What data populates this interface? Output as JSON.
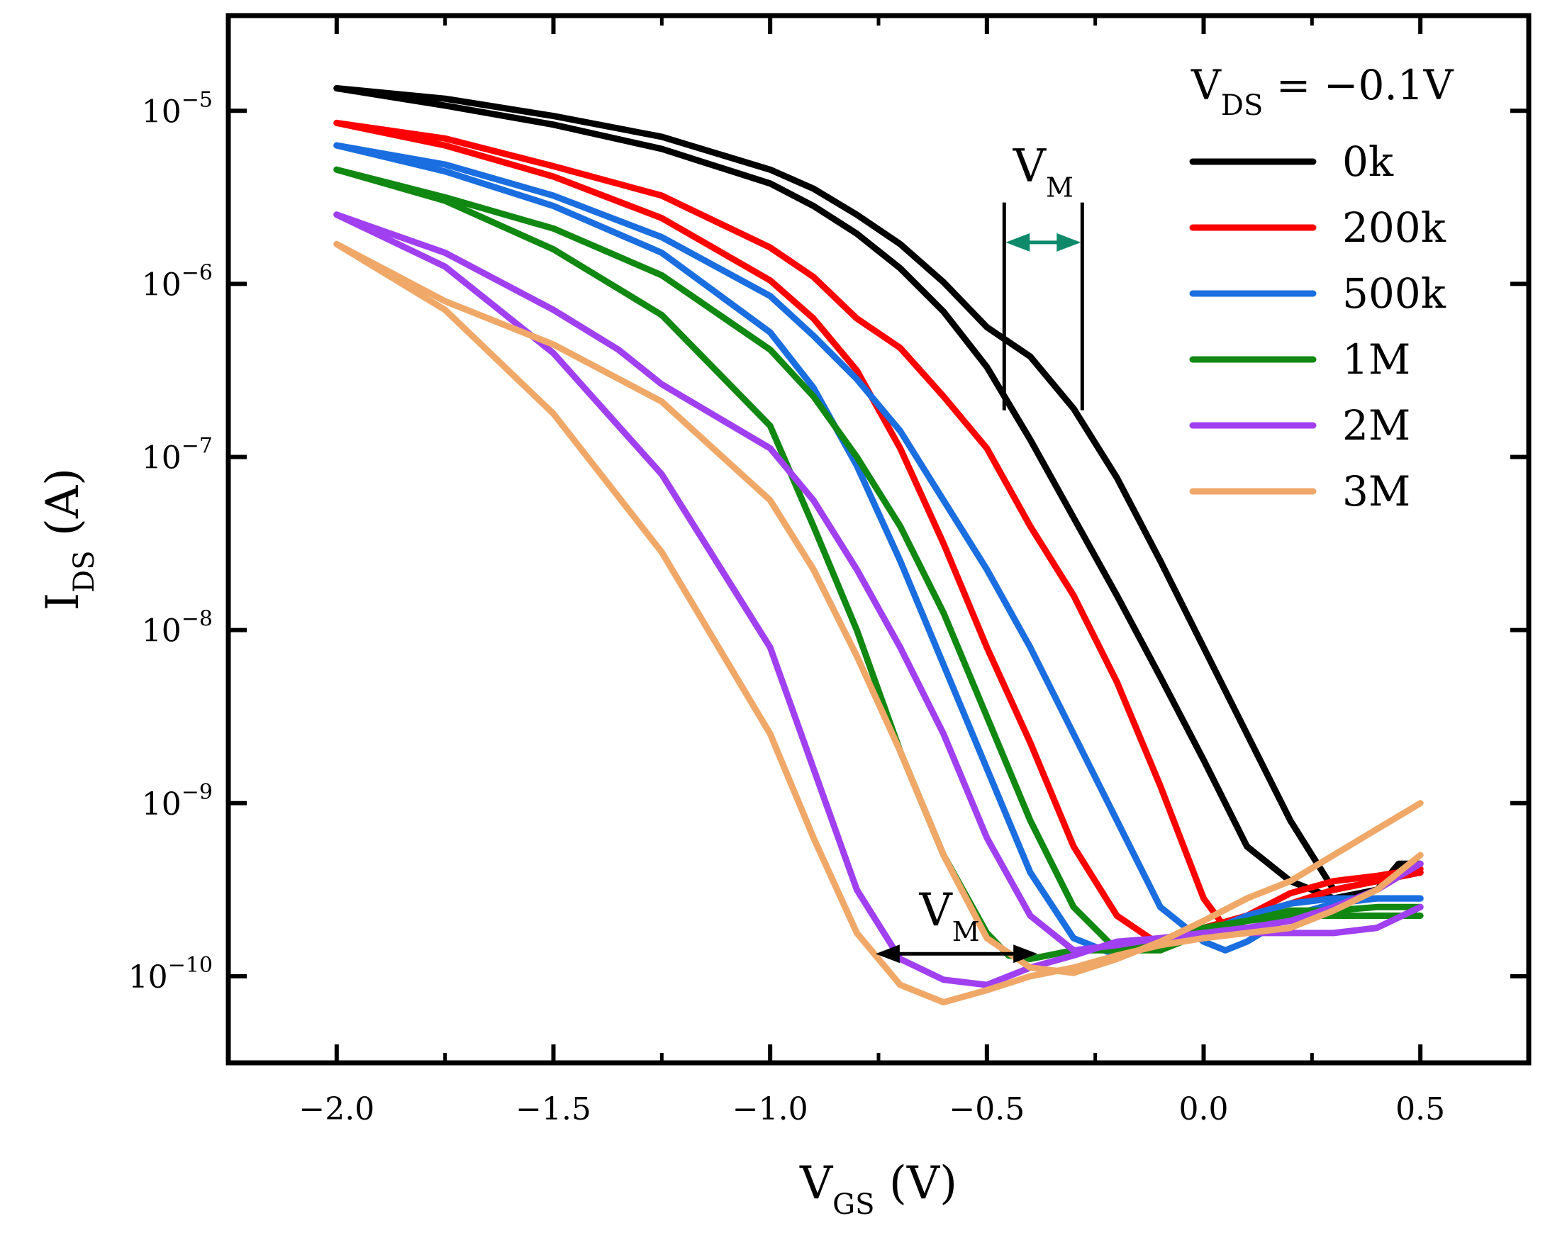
{
  "chart_data": {
    "type": "line",
    "title": "",
    "xlabel": {
      "main": "V",
      "sub": "GS",
      "unit": "(V)"
    },
    "ylabel": {
      "main": "I",
      "sub": "DS",
      "unit": "(A)"
    },
    "xlim": [
      -2.25,
      0.75
    ],
    "ylim_log10": [
      -10.5,
      -4.45
    ],
    "y_scale": "log",
    "x_ticks": [
      {
        "v": -2.0,
        "label": "-2.0"
      },
      {
        "v": -1.5,
        "label": "-1.5"
      },
      {
        "v": -1.0,
        "label": "-1.0"
      },
      {
        "v": -0.5,
        "label": "-0.5"
      },
      {
        "v": 0.0,
        "label": "0.0"
      },
      {
        "v": 0.5,
        "label": "0.5"
      }
    ],
    "x_minor_ticks": [
      -1.75,
      -1.25,
      -0.75,
      -0.25,
      0.25
    ],
    "y_ticks": [
      {
        "exp": -5,
        "base": "10",
        "sup": "-5"
      },
      {
        "exp": -6,
        "base": "10",
        "sup": "-6"
      },
      {
        "exp": -7,
        "base": "10",
        "sup": "-7"
      },
      {
        "exp": -8,
        "base": "10",
        "sup": "-8"
      },
      {
        "exp": -9,
        "base": "10",
        "sup": "-9"
      },
      {
        "exp": -10,
        "base": "10",
        "sup": "-10"
      }
    ],
    "legend": {
      "header": {
        "main": "V",
        "sub": "DS",
        "rest": " = -0.1V"
      },
      "position": "top-right"
    },
    "series": [
      {
        "name": "0k",
        "color": "#000000",
        "forward": [
          [
            -2.0,
            -4.87
          ],
          [
            -1.75,
            -4.97
          ],
          [
            -1.5,
            -5.08
          ],
          [
            -1.25,
            -5.22
          ],
          [
            -1.0,
            -5.42
          ],
          [
            -0.9,
            -5.55
          ],
          [
            -0.8,
            -5.71
          ],
          [
            -0.7,
            -5.91
          ],
          [
            -0.6,
            -6.16
          ],
          [
            -0.5,
            -6.48
          ],
          [
            -0.4,
            -6.9
          ],
          [
            -0.3,
            -7.35
          ],
          [
            -0.2,
            -7.8
          ],
          [
            -0.1,
            -8.27
          ],
          [
            0.0,
            -8.75
          ],
          [
            0.1,
            -9.25
          ],
          [
            0.2,
            -9.45
          ],
          [
            0.3,
            -9.55
          ],
          [
            0.4,
            -9.5
          ],
          [
            0.45,
            -9.35
          ],
          [
            0.5,
            -9.35
          ]
        ],
        "reverse": [
          [
            -2.0,
            -4.87
          ],
          [
            -1.75,
            -4.93
          ],
          [
            -1.5,
            -5.03
          ],
          [
            -1.25,
            -5.15
          ],
          [
            -1.0,
            -5.34
          ],
          [
            -0.9,
            -5.45
          ],
          [
            -0.8,
            -5.6
          ],
          [
            -0.7,
            -5.77
          ],
          [
            -0.6,
            -5.99
          ],
          [
            -0.5,
            -6.25
          ],
          [
            -0.4,
            -6.42
          ],
          [
            -0.3,
            -6.72
          ],
          [
            -0.2,
            -7.12
          ],
          [
            -0.1,
            -7.6
          ],
          [
            0.0,
            -8.1
          ],
          [
            0.1,
            -8.6
          ],
          [
            0.2,
            -9.1
          ],
          [
            0.3,
            -9.5
          ],
          [
            0.4,
            -9.45
          ],
          [
            0.5,
            -9.4
          ]
        ]
      },
      {
        "name": "200k",
        "color": "#ff0000",
        "forward": [
          [
            -2.0,
            -5.07
          ],
          [
            -1.75,
            -5.2
          ],
          [
            -1.5,
            -5.38
          ],
          [
            -1.25,
            -5.62
          ],
          [
            -1.0,
            -5.98
          ],
          [
            -0.9,
            -6.2
          ],
          [
            -0.8,
            -6.5
          ],
          [
            -0.7,
            -6.95
          ],
          [
            -0.6,
            -7.5
          ],
          [
            -0.5,
            -8.1
          ],
          [
            -0.4,
            -8.65
          ],
          [
            -0.3,
            -9.25
          ],
          [
            -0.2,
            -9.65
          ],
          [
            -0.1,
            -9.82
          ],
          [
            0.0,
            -9.72
          ],
          [
            0.1,
            -9.65
          ],
          [
            0.2,
            -9.58
          ],
          [
            0.3,
            -9.5
          ],
          [
            0.4,
            -9.45
          ],
          [
            0.5,
            -9.4
          ]
        ],
        "reverse": [
          [
            -2.0,
            -5.07
          ],
          [
            -1.75,
            -5.16
          ],
          [
            -1.5,
            -5.32
          ],
          [
            -1.25,
            -5.49
          ],
          [
            -1.0,
            -5.79
          ],
          [
            -0.9,
            -5.96
          ],
          [
            -0.8,
            -6.2
          ],
          [
            -0.7,
            -6.37
          ],
          [
            -0.6,
            -6.65
          ],
          [
            -0.5,
            -6.95
          ],
          [
            -0.4,
            -7.4
          ],
          [
            -0.3,
            -7.8
          ],
          [
            -0.2,
            -8.3
          ],
          [
            -0.1,
            -8.9
          ],
          [
            0.0,
            -9.55
          ],
          [
            0.05,
            -9.72
          ],
          [
            0.1,
            -9.65
          ],
          [
            0.2,
            -9.52
          ],
          [
            0.3,
            -9.45
          ],
          [
            0.4,
            -9.42
          ],
          [
            0.5,
            -9.38
          ]
        ]
      },
      {
        "name": "500k",
        "color": "#1a6ee0",
        "forward": [
          [
            -2.0,
            -5.2
          ],
          [
            -1.75,
            -5.35
          ],
          [
            -1.5,
            -5.55
          ],
          [
            -1.25,
            -5.82
          ],
          [
            -1.0,
            -6.28
          ],
          [
            -0.9,
            -6.6
          ],
          [
            -0.8,
            -7.05
          ],
          [
            -0.7,
            -7.6
          ],
          [
            -0.6,
            -8.2
          ],
          [
            -0.5,
            -8.8
          ],
          [
            -0.4,
            -9.4
          ],
          [
            -0.3,
            -9.78
          ],
          [
            -0.2,
            -9.88
          ],
          [
            -0.1,
            -9.82
          ],
          [
            0.0,
            -9.75
          ],
          [
            0.1,
            -9.65
          ],
          [
            0.2,
            -9.58
          ],
          [
            0.3,
            -9.55
          ],
          [
            0.4,
            -9.55
          ],
          [
            0.5,
            -9.55
          ]
        ],
        "reverse": [
          [
            -2.0,
            -5.2
          ],
          [
            -1.75,
            -5.31
          ],
          [
            -1.5,
            -5.49
          ],
          [
            -1.25,
            -5.73
          ],
          [
            -1.0,
            -6.07
          ],
          [
            -0.9,
            -6.3
          ],
          [
            -0.8,
            -6.55
          ],
          [
            -0.7,
            -6.85
          ],
          [
            -0.6,
            -7.25
          ],
          [
            -0.5,
            -7.65
          ],
          [
            -0.4,
            -8.1
          ],
          [
            -0.3,
            -8.6
          ],
          [
            -0.2,
            -9.1
          ],
          [
            -0.1,
            -9.6
          ],
          [
            0.0,
            -9.8
          ],
          [
            0.05,
            -9.85
          ],
          [
            0.1,
            -9.8
          ],
          [
            0.2,
            -9.65
          ],
          [
            0.3,
            -9.58
          ],
          [
            0.4,
            -9.55
          ],
          [
            0.5,
            -9.55
          ]
        ]
      },
      {
        "name": "1M",
        "color": "#118811",
        "forward": [
          [
            -2.0,
            -5.34
          ],
          [
            -1.75,
            -5.52
          ],
          [
            -1.5,
            -5.8
          ],
          [
            -1.25,
            -6.18
          ],
          [
            -1.0,
            -6.82
          ],
          [
            -0.9,
            -7.4
          ],
          [
            -0.8,
            -8.0
          ],
          [
            -0.7,
            -8.7
          ],
          [
            -0.6,
            -9.3
          ],
          [
            -0.5,
            -9.75
          ],
          [
            -0.45,
            -9.88
          ],
          [
            -0.4,
            -9.9
          ],
          [
            -0.3,
            -9.85
          ],
          [
            -0.2,
            -9.85
          ],
          [
            -0.1,
            -9.8
          ],
          [
            0.0,
            -9.72
          ],
          [
            0.1,
            -9.68
          ],
          [
            0.2,
            -9.65
          ],
          [
            0.3,
            -9.65
          ],
          [
            0.4,
            -9.65
          ],
          [
            0.5,
            -9.65
          ]
        ],
        "reverse": [
          [
            -2.0,
            -5.34
          ],
          [
            -1.75,
            -5.5
          ],
          [
            -1.5,
            -5.68
          ],
          [
            -1.25,
            -5.95
          ],
          [
            -1.0,
            -6.38
          ],
          [
            -0.9,
            -6.65
          ],
          [
            -0.8,
            -7.0
          ],
          [
            -0.7,
            -7.4
          ],
          [
            -0.6,
            -7.9
          ],
          [
            -0.5,
            -8.5
          ],
          [
            -0.4,
            -9.1
          ],
          [
            -0.3,
            -9.6
          ],
          [
            -0.2,
            -9.85
          ],
          [
            -0.1,
            -9.85
          ],
          [
            0.0,
            -9.75
          ],
          [
            0.1,
            -9.68
          ],
          [
            0.2,
            -9.62
          ],
          [
            0.3,
            -9.62
          ],
          [
            0.4,
            -9.6
          ],
          [
            0.5,
            -9.6
          ]
        ]
      },
      {
        "name": "2M",
        "color": "#a040f0",
        "forward": [
          [
            -2.0,
            -5.6
          ],
          [
            -1.75,
            -5.9
          ],
          [
            -1.5,
            -6.4
          ],
          [
            -1.25,
            -7.1
          ],
          [
            -1.0,
            -8.1
          ],
          [
            -0.9,
            -8.8
          ],
          [
            -0.8,
            -9.5
          ],
          [
            -0.7,
            -9.9
          ],
          [
            -0.6,
            -10.02
          ],
          [
            -0.5,
            -10.05
          ],
          [
            -0.4,
            -9.95
          ],
          [
            -0.3,
            -9.88
          ],
          [
            -0.2,
            -9.8
          ],
          [
            -0.1,
            -9.78
          ],
          [
            0.0,
            -9.75
          ],
          [
            0.1,
            -9.75
          ],
          [
            0.2,
            -9.75
          ],
          [
            0.3,
            -9.75
          ],
          [
            0.4,
            -9.72
          ],
          [
            0.5,
            -9.6
          ]
        ],
        "reverse": [
          [
            -2.0,
            -5.6
          ],
          [
            -1.75,
            -5.82
          ],
          [
            -1.5,
            -6.15
          ],
          [
            -1.35,
            -6.38
          ],
          [
            -1.25,
            -6.58
          ],
          [
            -1.0,
            -6.95
          ],
          [
            -0.9,
            -7.25
          ],
          [
            -0.8,
            -7.65
          ],
          [
            -0.7,
            -8.1
          ],
          [
            -0.6,
            -8.6
          ],
          [
            -0.5,
            -9.2
          ],
          [
            -0.4,
            -9.65
          ],
          [
            -0.3,
            -9.85
          ],
          [
            -0.2,
            -9.82
          ],
          [
            -0.1,
            -9.78
          ],
          [
            0.0,
            -9.75
          ],
          [
            0.1,
            -9.72
          ],
          [
            0.2,
            -9.68
          ],
          [
            0.3,
            -9.6
          ],
          [
            0.4,
            -9.5
          ],
          [
            0.5,
            -9.35
          ]
        ]
      },
      {
        "name": "3M",
        "color": "#f0a868",
        "forward": [
          [
            -2.0,
            -5.77
          ],
          [
            -1.75,
            -6.15
          ],
          [
            -1.5,
            -6.75
          ],
          [
            -1.25,
            -7.55
          ],
          [
            -1.0,
            -8.6
          ],
          [
            -0.9,
            -9.2
          ],
          [
            -0.8,
            -9.75
          ],
          [
            -0.7,
            -10.05
          ],
          [
            -0.6,
            -10.15
          ],
          [
            -0.5,
            -10.08
          ],
          [
            -0.4,
            -10.0
          ],
          [
            -0.3,
            -9.95
          ],
          [
            -0.2,
            -9.88
          ],
          [
            -0.1,
            -9.82
          ],
          [
            0.0,
            -9.78
          ],
          [
            0.1,
            -9.75
          ],
          [
            0.2,
            -9.72
          ],
          [
            0.3,
            -9.62
          ],
          [
            0.4,
            -9.5
          ],
          [
            0.5,
            -9.3
          ]
        ],
        "reverse": [
          [
            -2.0,
            -5.77
          ],
          [
            -1.75,
            -6.1
          ],
          [
            -1.5,
            -6.35
          ],
          [
            -1.25,
            -6.68
          ],
          [
            -1.0,
            -7.25
          ],
          [
            -0.9,
            -7.65
          ],
          [
            -0.8,
            -8.15
          ],
          [
            -0.7,
            -8.7
          ],
          [
            -0.6,
            -9.3
          ],
          [
            -0.5,
            -9.78
          ],
          [
            -0.4,
            -9.95
          ],
          [
            -0.3,
            -9.98
          ],
          [
            -0.2,
            -9.9
          ],
          [
            -0.1,
            -9.8
          ],
          [
            0.0,
            -9.68
          ],
          [
            0.1,
            -9.55
          ],
          [
            0.2,
            -9.45
          ],
          [
            0.3,
            -9.3
          ],
          [
            0.4,
            -9.15
          ],
          [
            0.5,
            -9.0
          ]
        ]
      }
    ],
    "annotations": [
      {
        "label_main": "V",
        "label_sub": "M",
        "type": "bracket",
        "x1": -0.46,
        "x2": -0.28,
        "y_top": -5.53,
        "y_bottom": -6.73,
        "arrow_y": -5.76,
        "color": "#0e8a6a"
      },
      {
        "label_main": "V",
        "label_sub": "M",
        "type": "arrow",
        "x1": -0.76,
        "x2": -0.38,
        "arrow_y": -9.87,
        "color": "#000000"
      }
    ]
  }
}
